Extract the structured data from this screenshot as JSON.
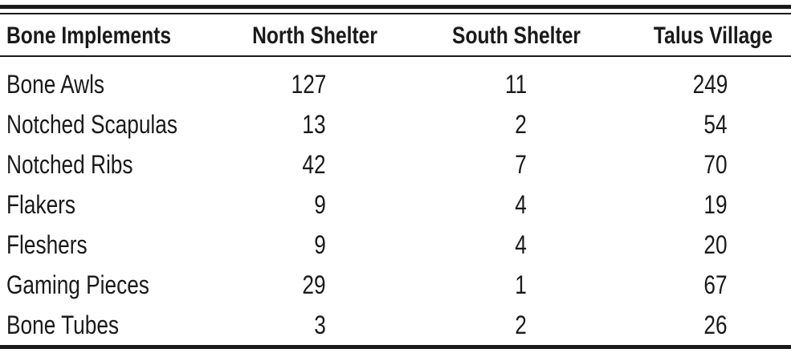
{
  "table": {
    "header": [
      "Bone Implements",
      "North Shelter",
      "South Shelter",
      "Talus Village"
    ],
    "rows": [
      [
        "Bone Awls",
        127,
        11,
        249
      ],
      [
        "Notched Scapulas",
        13,
        2,
        54
      ],
      [
        "Notched Ribs",
        42,
        7,
        70
      ],
      [
        "Flakers",
        9,
        4,
        19
      ],
      [
        "Fleshers",
        9,
        4,
        20
      ],
      [
        "Gaming Pieces",
        29,
        1,
        67
      ],
      [
        "Bone Tubes",
        3,
        2,
        26
      ]
    ]
  }
}
